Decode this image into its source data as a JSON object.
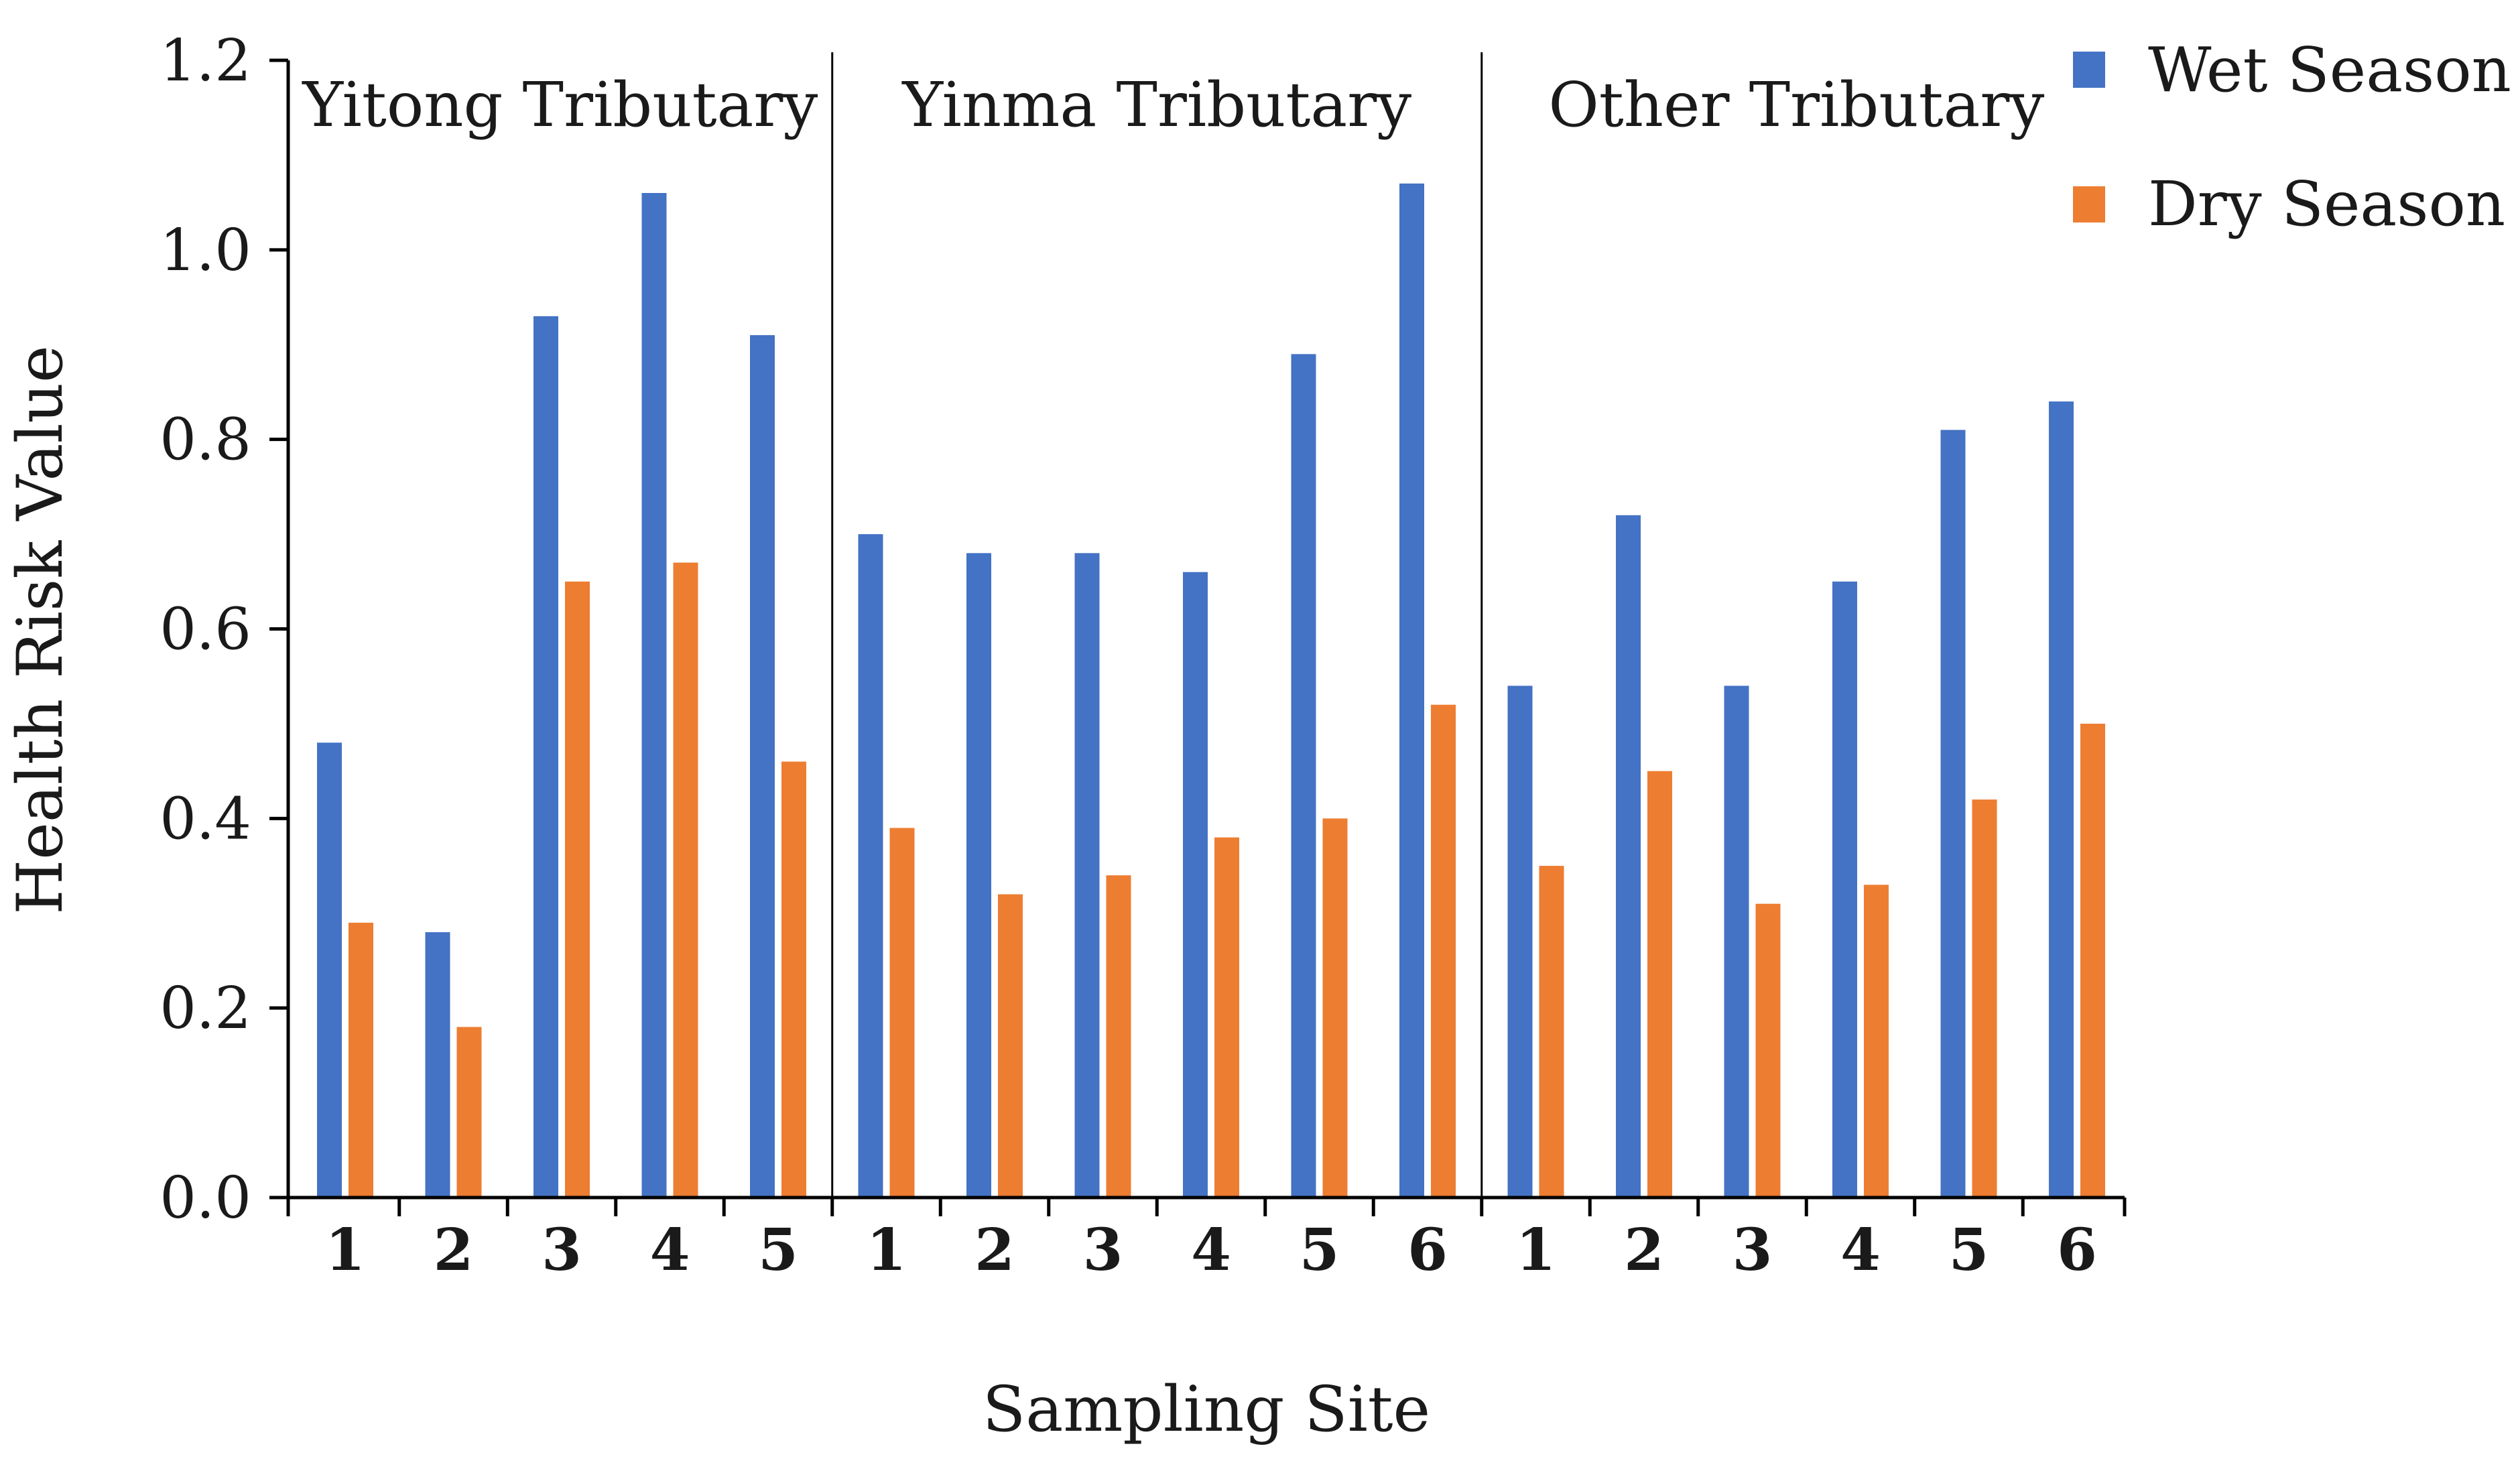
{
  "chart_data": {
    "type": "bar",
    "xlabel": "Sampling Site",
    "ylabel": "Health Risk Value",
    "ylim": [
      0,
      1.2
    ],
    "yticks": [
      "0.0",
      "0.2",
      "0.4",
      "0.6",
      "0.8",
      "1.0",
      "1.2"
    ],
    "grid": false,
    "legend_position": "top-right",
    "groups": [
      {
        "name": "Yitong Tributary",
        "sites": [
          "1",
          "2",
          "3",
          "4",
          "5"
        ]
      },
      {
        "name": "Yinma Tributary",
        "sites": [
          "1",
          "2",
          "3",
          "4",
          "5",
          "6"
        ]
      },
      {
        "name": "Other Tributary",
        "sites": [
          "1",
          "2",
          "3",
          "4",
          "5",
          "6"
        ]
      }
    ],
    "categories": [
      "1",
      "2",
      "3",
      "4",
      "5",
      "1",
      "2",
      "3",
      "4",
      "5",
      "6",
      "1",
      "2",
      "3",
      "4",
      "5",
      "6"
    ],
    "series": [
      {
        "name": "Wet Season",
        "color": "#4472C4",
        "values": [
          0.48,
          0.28,
          0.93,
          1.06,
          0.91,
          0.7,
          0.68,
          0.68,
          0.66,
          0.89,
          1.07,
          0.54,
          0.72,
          0.54,
          0.65,
          0.81,
          0.84
        ]
      },
      {
        "name": "Dry Season",
        "color": "#ED7D31",
        "values": [
          0.29,
          0.18,
          0.65,
          0.67,
          0.46,
          0.39,
          0.32,
          0.34,
          0.38,
          0.4,
          0.52,
          0.35,
          0.45,
          0.31,
          0.33,
          0.42,
          0.5
        ]
      }
    ]
  }
}
